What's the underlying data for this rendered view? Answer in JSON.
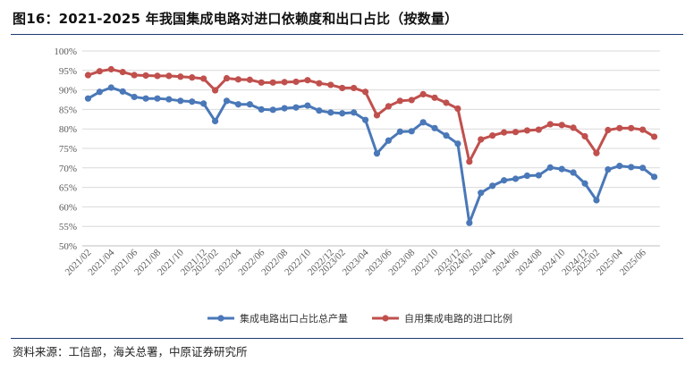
{
  "header": {
    "title": "图16：2021-2025 年我国集成电路对进口依赖度和出口占比（按数量）"
  },
  "footer": {
    "source": "资料来源：工信部，海关总署，中原证券研究所"
  },
  "chart_data": {
    "type": "line",
    "title": "图16：2021-2025 年我国集成电路对进口依赖度和出口占比（按数量）",
    "xlabel": "",
    "ylabel": "",
    "ylim": [
      50,
      100
    ],
    "yticks": [
      "50%",
      "55%",
      "60%",
      "65%",
      "70%",
      "75%",
      "80%",
      "85%",
      "90%",
      "95%",
      "100%"
    ],
    "grid": "horizontal",
    "legend_position": "bottom",
    "x": [
      "2021/02",
      "2021/03",
      "2021/04",
      "2021/05",
      "2021/06",
      "2021/07",
      "2021/08",
      "2021/09",
      "2021/10",
      "2021/11",
      "2021/12",
      "2022/02",
      "2022/03",
      "2022/04",
      "2022/05",
      "2022/06",
      "2022/07",
      "2022/08",
      "2022/09",
      "2022/10",
      "2022/11",
      "2022/12",
      "2023/02",
      "2023/03",
      "2023/04",
      "2023/05",
      "2023/06",
      "2023/07",
      "2023/08",
      "2023/09",
      "2023/10",
      "2023/11",
      "2023/12",
      "2024/02",
      "2024/03",
      "2024/04",
      "2024/05",
      "2024/06",
      "2024/07",
      "2024/08",
      "2024/09",
      "2024/10",
      "2024/11",
      "2024/12",
      "2025/02",
      "2025/03",
      "2025/04",
      "2025/05",
      "2025/06",
      "2025/07"
    ],
    "x_tick_labels": [
      "2021/02",
      "2021/04",
      "2021/06",
      "2021/08",
      "2021/10",
      "2021/12",
      "2022/02",
      "2022/04",
      "2022/06",
      "2022/08",
      "2022/10",
      "2022/12",
      "2023/02",
      "2023/04",
      "2023/06",
      "2023/08",
      "2023/10",
      "2023/12",
      "2024/02",
      "2024/04",
      "2024/06",
      "2024/08",
      "2024/10",
      "2024/12",
      "2025/02",
      "2025/04",
      "2025/06"
    ],
    "series": [
      {
        "name": "集成电路出口占比总产量",
        "color": "#4a78b8",
        "values": [
          87.8,
          89.5,
          90.6,
          89.6,
          88.2,
          87.8,
          87.8,
          87.6,
          87.2,
          87.0,
          86.5,
          82.0,
          87.2,
          86.3,
          86.3,
          85.0,
          84.9,
          85.3,
          85.5,
          86.0,
          84.7,
          84.2,
          84.0,
          84.2,
          82.3,
          73.7,
          77.0,
          79.3,
          79.4,
          81.7,
          80.2,
          78.3,
          76.2,
          55.9,
          63.6,
          65.4,
          66.8,
          67.2,
          68.0,
          68.1,
          70.1,
          69.7,
          68.8,
          66.0,
          61.7,
          69.6,
          70.5,
          70.2,
          70.0,
          67.7
        ]
      },
      {
        "name": "自用集成电路的进口比例",
        "color": "#c0504d",
        "values": [
          93.8,
          94.8,
          95.3,
          94.6,
          93.8,
          93.7,
          93.6,
          93.6,
          93.4,
          93.2,
          92.9,
          89.9,
          93.0,
          92.7,
          92.6,
          91.9,
          91.9,
          92.0,
          92.1,
          92.5,
          91.7,
          91.3,
          90.5,
          90.5,
          89.5,
          83.5,
          85.8,
          87.2,
          87.4,
          88.9,
          88.0,
          86.7,
          85.2,
          71.6,
          77.3,
          78.3,
          79.1,
          79.2,
          79.6,
          79.8,
          81.2,
          81.0,
          80.3,
          78.1,
          73.8,
          79.7,
          80.2,
          80.2,
          79.8,
          78.0
        ]
      }
    ]
  }
}
